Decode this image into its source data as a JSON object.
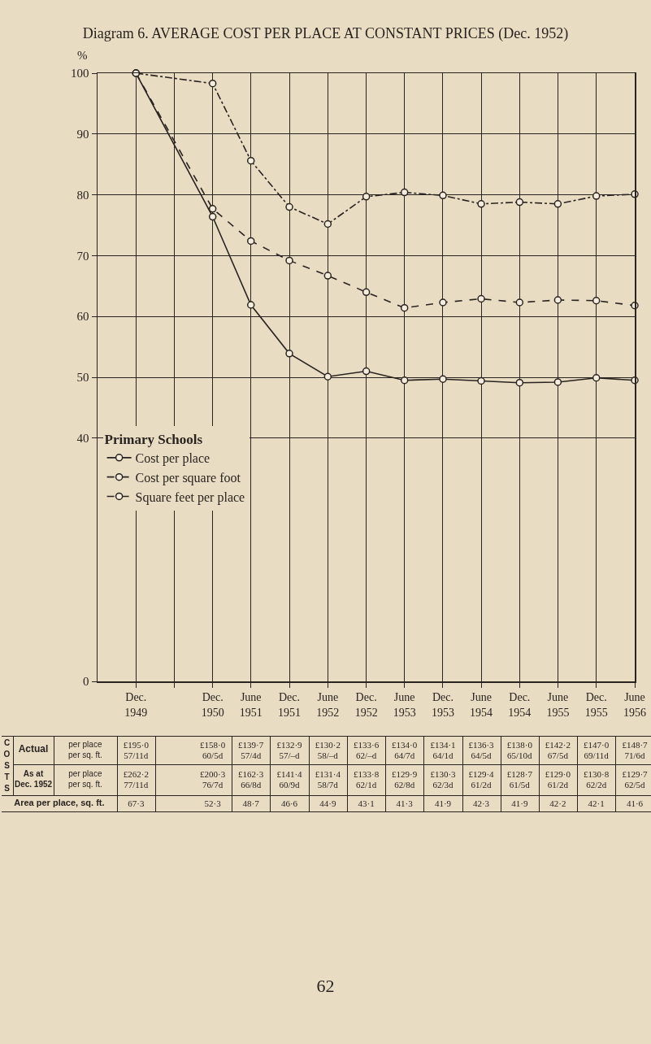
{
  "chart_data": {
    "type": "line",
    "title": "Diagram 6. AVERAGE COST PER PLACE AT CONSTANT PRICES (Dec. 1952)",
    "ylabel": "%",
    "legend_title": "Primary Schools",
    "x": [
      "1949-12",
      "1950-12",
      "1951-06",
      "1951-12",
      "1952-06",
      "1952-12",
      "1953-06",
      "1953-12",
      "1954-06",
      "1954-12",
      "1955-06",
      "1955-12",
      "1956-06"
    ],
    "xlim": [
      "1949-06",
      "1956-06"
    ],
    "xticks": [
      {
        "value": "1949-12",
        "label": "Dec. 1949"
      },
      {
        "value": "1950-06",
        "label": null
      },
      {
        "value": "1950-12",
        "label": "Dec. 1950"
      },
      {
        "value": "1951-06",
        "label": "June 1951"
      },
      {
        "value": "1951-12",
        "label": "Dec. 1951"
      },
      {
        "value": "1952-06",
        "label": "June 1952"
      },
      {
        "value": "1952-12",
        "label": "Dec. 1952"
      },
      {
        "value": "1953-06",
        "label": "June 1953"
      },
      {
        "value": "1953-12",
        "label": "Dec. 1953"
      },
      {
        "value": "1954-06",
        "label": "June 1954"
      },
      {
        "value": "1954-12",
        "label": "Dec. 1954"
      },
      {
        "value": "1955-06",
        "label": "June 1955"
      },
      {
        "value": "1955-12",
        "label": "Dec. 1955"
      },
      {
        "value": "1956-06",
        "label": "June 1956"
      }
    ],
    "ylim": [
      0,
      100
    ],
    "yticks": [
      0,
      40,
      50,
      60,
      70,
      80,
      90,
      100
    ],
    "series": [
      {
        "name": "Cost per place",
        "color": "#2a2420",
        "line_style": "solid",
        "values": [
          100,
          76.4,
          61.9,
          53.9,
          50.1,
          51.0,
          49.5,
          49.7,
          49.4,
          49.1,
          49.2,
          49.9,
          49.5
        ]
      },
      {
        "name": "Cost per square foot",
        "color": "#2a2420",
        "line_style": "dashdot",
        "values": [
          100,
          98.3,
          85.6,
          78.0,
          75.2,
          79.7,
          80.4,
          79.9,
          78.5,
          78.8,
          78.5,
          79.8,
          80.1
        ]
      },
      {
        "name": "Square feet per place",
        "color": "#2a2420",
        "line_style": "dashed",
        "values": [
          100,
          77.7,
          72.4,
          69.2,
          66.7,
          64.0,
          61.4,
          62.3,
          62.9,
          62.3,
          62.7,
          62.6,
          61.8
        ]
      }
    ],
    "marker": "circle",
    "grid": true,
    "legend": "bottom left",
    "annotations": [
      "COSTS",
      "Actual",
      "per place",
      "per sq. ft.",
      "As at Dec. 1952",
      "per place",
      "per sq. ft.",
      "Area per place, sq. ft.",
      "£195·0",
      "57/11d",
      "£262·2",
      "77/11d",
      "67·3",
      "£158·0",
      "60/5d",
      "£200·3",
      "76/7d",
      "52·3",
      "£139·7",
      "57/4d",
      "£162·3",
      "66/8d",
      "48·7",
      "£132·9",
      "57/–d",
      "£141·4",
      "60/9d",
      "46·6",
      "£130·2",
      "58/–d",
      "£131·4",
      "58/7d",
      "44·9",
      "£133·6",
      "62/–d",
      "£133·8",
      "62/1d",
      "43·1",
      "£134·0",
      "64/7d",
      "£129·9",
      "62/8d",
      "41·3",
      "£134·1",
      "64/1d",
      "£130·3",
      "62/3d",
      "41·9",
      "£136·3",
      "64/5d",
      "£129·4",
      "61/2d",
      "42·3",
      "£138·0",
      "65/10d",
      "£128·7",
      "61/5d",
      "41·9",
      "£142·2",
      "67/5d",
      "£129·0",
      "61/2d",
      "42·2",
      "£147·0",
      "69/11d",
      "£130·8",
      "62/2d",
      "42·1",
      "£148·7",
      "71/6d",
      "£129·7",
      "62/5d",
      "41·6",
      "62"
    ]
  }
}
